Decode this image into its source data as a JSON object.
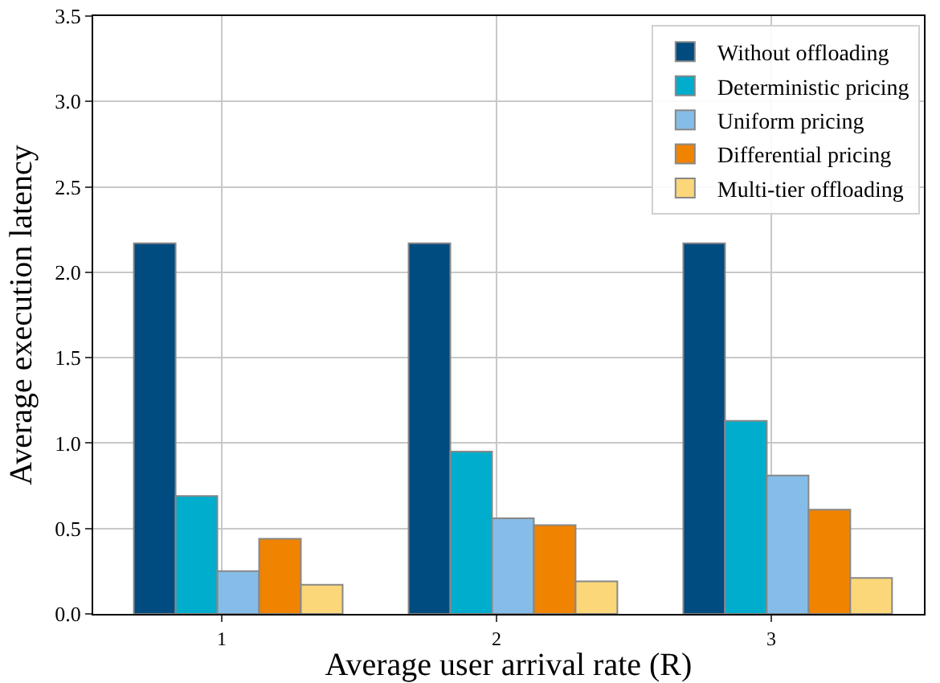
{
  "chart_data": {
    "type": "bar",
    "xlabel": "Average user arrival rate (R)",
    "ylabel": "Average execution latency",
    "categories": [
      "1",
      "2",
      "3"
    ],
    "series": [
      {
        "name": "Without offloading",
        "color": "#004b7f",
        "values": [
          2.17,
          2.17,
          2.17
        ]
      },
      {
        "name": "Deterministic pricing",
        "color": "#00adcc",
        "values": [
          0.69,
          0.95,
          1.13
        ]
      },
      {
        "name": "Uniform pricing",
        "color": "#85bde8",
        "values": [
          0.25,
          0.56,
          0.81
        ]
      },
      {
        "name": "Differential pricing",
        "color": "#f08300",
        "values": [
          0.44,
          0.52,
          0.61
        ]
      },
      {
        "name": "Multi-tier offloading",
        "color": "#fbd779",
        "values": [
          0.17,
          0.19,
          0.21
        ]
      }
    ],
    "ylim": [
      0,
      3.5
    ],
    "yticks": [
      {
        "value": 0,
        "label": "0.0"
      },
      {
        "value": 0.5,
        "label": "0.5"
      },
      {
        "value": 1,
        "label": "1.0"
      },
      {
        "value": 1.5,
        "label": "1.5"
      },
      {
        "value": 2,
        "label": "2.0"
      },
      {
        "value": 2.5,
        "label": "2.5"
      },
      {
        "value": 3,
        "label": "3.0"
      },
      {
        "value": 3.5,
        "label": "3.5"
      }
    ],
    "grid": true,
    "legend": "top right"
  }
}
